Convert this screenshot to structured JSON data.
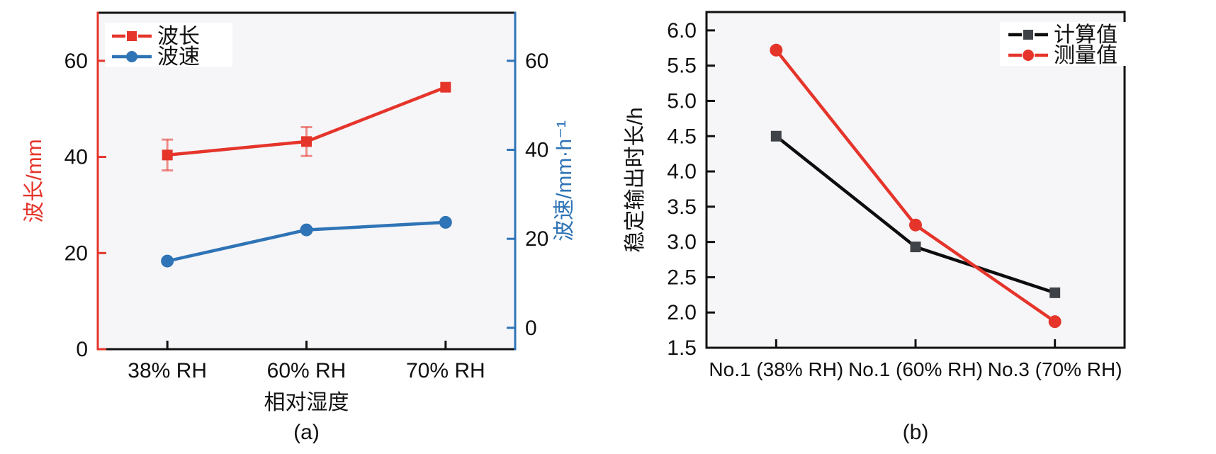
{
  "figure": {
    "background": "#ffffff"
  },
  "colors": {
    "red": "#e5352b",
    "blue": "#2f74b6",
    "black": "#111111",
    "marker_gray": "#3f4347",
    "plot_bg": "#f6f6f9",
    "legend_bg": "#ffffff"
  },
  "chart_data": [
    {
      "id": "a",
      "type": "line",
      "caption": "(a)",
      "categories": [
        "38% RH",
        "60% RH",
        "70% RH"
      ],
      "xlabel": "相对湿度",
      "grid": false,
      "legend_position": "top-left",
      "axes": {
        "left": {
          "label": "波长/mm",
          "color": "#e5352b",
          "min": 0,
          "max": 70,
          "ticks": [
            {
              "v": 0,
              "label": "0"
            },
            {
              "v": 20,
              "label": "20"
            },
            {
              "v": 40,
              "label": "40"
            },
            {
              "v": 60,
              "label": "60"
            }
          ]
        },
        "right": {
          "label": "波速/mm·h⁻¹",
          "color": "#2f74b6",
          "min": -4.8,
          "max": 70.8,
          "ticks": [
            {
              "v": 0,
              "label": "0"
            },
            {
              "v": 20,
              "label": "20"
            },
            {
              "v": 40,
              "label": "40"
            },
            {
              "v": 60,
              "label": "60"
            }
          ]
        }
      },
      "series": [
        {
          "name": "波长",
          "axis": "left",
          "color": "#e5352b",
          "marker": "square",
          "legend_style": "dashed",
          "values": [
            40.4,
            43.2,
            54.5
          ],
          "errors": [
            3.2,
            3.0,
            0
          ]
        },
        {
          "name": "波速",
          "axis": "right",
          "color": "#2f74b6",
          "marker": "circle",
          "legend_style": "solid",
          "values": [
            15.0,
            22.0,
            23.7
          ]
        }
      ]
    },
    {
      "id": "b",
      "type": "line",
      "caption": "(b)",
      "categories": [
        "No.1 (38% RH)",
        "No.1 (60% RH)",
        "No.3 (70% RH)"
      ],
      "xlabel": "",
      "grid": false,
      "legend_position": "top-right",
      "axes": {
        "left": {
          "label": "稳定输出时长/h",
          "color": "#111111",
          "min": 1.5,
          "max": 6.26,
          "ticks": [
            {
              "v": 1.5,
              "label": "1.5"
            },
            {
              "v": 2.0,
              "label": "2.0"
            },
            {
              "v": 2.5,
              "label": "2.5"
            },
            {
              "v": 3.0,
              "label": "3.0"
            },
            {
              "v": 3.5,
              "label": "3.5"
            },
            {
              "v": 4.0,
              "label": "4.0"
            },
            {
              "v": 4.5,
              "label": "4.5"
            },
            {
              "v": 5.0,
              "label": "5.0"
            },
            {
              "v": 5.5,
              "label": "5.5"
            },
            {
              "v": 6.0,
              "label": "6.0"
            }
          ]
        }
      },
      "series": [
        {
          "name": "计算值",
          "axis": "left",
          "color": "#0d0d0d",
          "marker": "square",
          "marker_fill": "#3f4347",
          "legend_style": "dashed",
          "values": [
            4.5,
            2.93,
            2.28
          ]
        },
        {
          "name": "测量值",
          "axis": "left",
          "color": "#e5352b",
          "marker": "circle",
          "legend_style": "dashed",
          "values": [
            5.72,
            3.24,
            1.87
          ]
        }
      ]
    }
  ]
}
